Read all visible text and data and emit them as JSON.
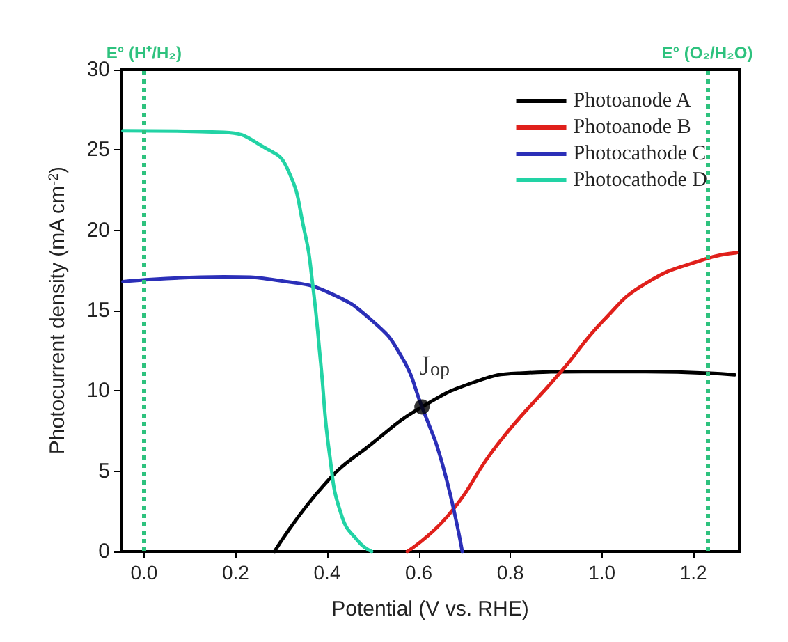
{
  "chart_data": {
    "type": "line",
    "xlabel": "Potential (V vs. RHE)",
    "ylabel": "Photocurrent density (mA cm$^{-2}$)",
    "xlim": [
      -0.05,
      1.3
    ],
    "xticks": [
      {
        "value": 0,
        "label": "0.0"
      },
      0.2,
      0.4,
      0.6,
      0.8,
      {
        "value": 1,
        "label": "1.0"
      },
      1.2
    ],
    "ylim": [
      0,
      30
    ],
    "yticks": [
      0,
      5,
      10,
      15,
      20,
      25,
      30
    ],
    "grid": false,
    "legend": "top right",
    "marker": "none",
    "line_style": "solid",
    "series": [
      {
        "name": "Photoanode A",
        "color": "#000000",
        "x": [
          0.285,
          0.395,
          0.497,
          0.607,
          0.727,
          0.82,
          0.958,
          1.096,
          1.29
        ],
        "values": [
          0,
          4.2,
          6.7,
          9.0,
          10.6,
          11.1,
          11.2,
          11.2,
          11.0
        ]
      },
      {
        "name": "Photoanode B",
        "color": "#e0201b",
        "x": [
          0.575,
          0.663,
          0.773,
          0.911,
          1.004,
          1.096,
          1.225,
          1.294
        ],
        "values": [
          0,
          2.2,
          6.7,
          11.2,
          14.4,
          16.7,
          18.2,
          18.6
        ]
      },
      {
        "name": "Photocathode C",
        "color": "#2b2fb8",
        "x": [
          -0.046,
          0.174,
          0.312,
          0.405,
          0.497,
          0.561,
          0.607,
          0.653,
          0.695
        ],
        "values": [
          16.8,
          17.1,
          16.8,
          16.1,
          14.4,
          12.2,
          9.0,
          5.3,
          0
        ]
      },
      {
        "name": "Photocathode D",
        "color": "#22d3a5",
        "x": [
          -0.046,
          0.174,
          0.266,
          0.312,
          0.35,
          0.368,
          0.386,
          0.405,
          0.432,
          0.469,
          0.497
        ],
        "values": [
          26.2,
          26.1,
          25.1,
          23.9,
          20,
          16.7,
          11.7,
          6.1,
          2.2,
          0.6,
          0
        ]
      },
      {
        "type": "scatter",
        "color": "#000000",
        "marker": "circle",
        "x": [
          0.607
        ],
        "values": [
          9.0
        ]
      }
    ],
    "ref_lines": [
      {
        "axis": "x",
        "value": 0.0,
        "label": "E° (H⁺/H₂)",
        "color": "#2ec27e",
        "line_style": "dotted"
      },
      {
        "axis": "x",
        "value": 1.23,
        "label": "E° (O₂/H₂O)",
        "color": "#2ec27e",
        "line_style": "dotted"
      }
    ],
    "annotations": [
      {
        "text": "J$_{op}$",
        "x": 0.61,
        "y": 9.0
      }
    ]
  }
}
